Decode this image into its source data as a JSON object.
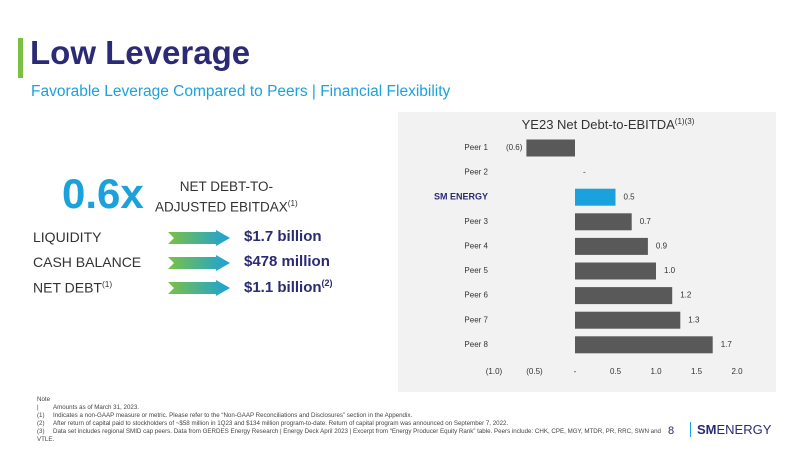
{
  "header": {
    "title": "Low Leverage",
    "subtitle": "Favorable Leverage Compared to Peers | Financial Flexibility"
  },
  "highlight": {
    "value": "0.6x",
    "label_line1": "NET DEBT-TO-",
    "label_line2": "ADJUSTED EBITDAX",
    "label_note": "(1)"
  },
  "metrics": [
    {
      "label": "LIQUIDITY",
      "label_note": null,
      "value": "$1.7 billion",
      "value_note": null
    },
    {
      "label": "CASH BALANCE",
      "label_note": null,
      "value": "$478 million",
      "value_note": null
    },
    {
      "label": "NET DEBT",
      "label_note": "(1)",
      "value": "$1.1 billion",
      "value_note": "(2)"
    }
  ],
  "chart_data": {
    "type": "hbar",
    "title": "YE23 Net Debt-to-EBITDA",
    "title_note": "(1)(3)",
    "categories": [
      "Peer 1",
      "Peer 2",
      "SM ENERGY",
      "Peer 3",
      "Peer 4",
      "Peer 5",
      "Peer 6",
      "Peer 7",
      "Peer 8"
    ],
    "values": [
      -0.6,
      0,
      0.5,
      0.7,
      0.9,
      1.0,
      1.2,
      1.3,
      1.7
    ],
    "value_labels": [
      "(0.6)",
      "-",
      "0.5",
      "0.7",
      "0.9",
      "1.0",
      "1.2",
      "1.3",
      "1.7"
    ],
    "colors": [
      "#595959",
      "#595959",
      "#1ba1dc",
      "#595959",
      "#595959",
      "#595959",
      "#595959",
      "#595959",
      "#595959"
    ],
    "xlim": [
      -1.0,
      2.0
    ],
    "xticks": [
      {
        "value": -1.0,
        "label": "(1.0)"
      },
      {
        "value": -0.5,
        "label": "(0.5)"
      },
      {
        "value": 0,
        "label": "-"
      },
      0.5,
      {
        "value": 1.0,
        "label": "1.0"
      },
      1.5,
      {
        "value": 2.0,
        "label": "2.0"
      }
    ],
    "grid": false
  },
  "notes": [
    {
      "marker": "Note |",
      "text": "Amounts as of March 31, 2023."
    },
    {
      "marker": "(1)",
      "text": "Indicates a non-GAAP measure or metric. Please refer to the “Non-GAAP Reconciliations and Disclosures” section in the Appendix."
    },
    {
      "marker": "(2)",
      "text": "After return of capital paid to stockholders of ~$58 million in 1Q23 and $134 million program-to-date. Return of capital program was announced on September 7, 2022."
    },
    {
      "marker": "(3)",
      "text": "Data set includes regional SMID cap peers. Data from GERDES Energy Research | Energy Deck April 2023 | Excerpt from “Energy Producer Equity Rank” table. Peers include: CHK, CPE, MGY, MTDR, PR, RRC, SWN and VTLE."
    }
  ],
  "footer": {
    "page": "8",
    "logo_bold": "SM",
    "logo_text": "ENERGY"
  }
}
